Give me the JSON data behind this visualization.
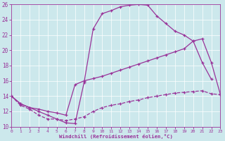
{
  "bg_color": "#cce8ec",
  "line_color": "#993399",
  "xlabel": "Windchill (Refroidissement éolien,°C)",
  "xlim": [
    0,
    23
  ],
  "ylim": [
    10,
    26
  ],
  "xticks": [
    0,
    1,
    2,
    3,
    4,
    5,
    6,
    7,
    8,
    9,
    10,
    11,
    12,
    13,
    14,
    15,
    16,
    17,
    18,
    19,
    20,
    21,
    22,
    23
  ],
  "yticks": [
    10,
    12,
    14,
    16,
    18,
    20,
    22,
    24,
    26
  ],
  "s1x": [
    0,
    1,
    2,
    3,
    4,
    5,
    6,
    7,
    8,
    9,
    10,
    11,
    12,
    13,
    14,
    15,
    16,
    17,
    18,
    19,
    20,
    21,
    22
  ],
  "s1y": [
    14,
    13,
    12.5,
    12,
    11.5,
    11,
    10.5,
    10.4,
    15.8,
    22.8,
    24.8,
    25.2,
    25.7,
    25.9,
    26.0,
    25.9,
    24.5,
    23.5,
    22.5,
    22.0,
    21.2,
    18.4,
    16.2
  ],
  "s2x": [
    0,
    1,
    2,
    3,
    4,
    5,
    6,
    7,
    8,
    9,
    10,
    11,
    12,
    13,
    14,
    15,
    16,
    17,
    18,
    19,
    20,
    21,
    22,
    23
  ],
  "s2y": [
    14,
    13,
    12.5,
    12.3,
    12.0,
    11.8,
    11.5,
    15.5,
    16.0,
    16.3,
    16.6,
    17.0,
    17.4,
    17.8,
    18.2,
    18.6,
    19.0,
    19.4,
    19.8,
    20.2,
    21.2,
    21.5,
    18.4,
    14.2
  ],
  "s3x": [
    0,
    1,
    2,
    3,
    4,
    5,
    6,
    7,
    8,
    9,
    10,
    11,
    12,
    13,
    14,
    15,
    16,
    17,
    18,
    19,
    20,
    21,
    22,
    23
  ],
  "s3y": [
    14,
    12.8,
    12.3,
    11.5,
    11.0,
    11.0,
    10.8,
    11.0,
    11.3,
    12.0,
    12.5,
    12.8,
    13.0,
    13.3,
    13.5,
    13.8,
    14.0,
    14.2,
    14.4,
    14.5,
    14.6,
    14.7,
    14.3,
    14.2
  ]
}
